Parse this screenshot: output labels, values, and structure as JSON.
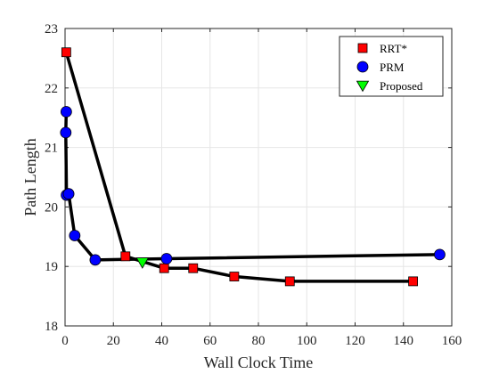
{
  "chart_data": {
    "type": "line",
    "xlabel": "Wall Clock Time",
    "ylabel": "Path Length",
    "xlim": [
      0,
      160
    ],
    "ylim": [
      18,
      23
    ],
    "xticks": [
      0,
      20,
      40,
      60,
      80,
      100,
      120,
      140,
      160
    ],
    "yticks": [
      18,
      19,
      20,
      21,
      22,
      23
    ],
    "xtick_labels": [
      "0",
      "20",
      "40",
      "60",
      "80",
      "100",
      "120",
      "140",
      "160"
    ],
    "ytick_labels": [
      "18",
      "19",
      "20",
      "21",
      "22",
      "23"
    ],
    "grid": true,
    "legend_position": "top-right",
    "series": [
      {
        "name": "RRT*",
        "marker": "square",
        "color": "#ff0000",
        "x": [
          0.5,
          25,
          41,
          53,
          70,
          93,
          144
        ],
        "y": [
          22.6,
          19.17,
          18.97,
          18.97,
          18.83,
          18.75,
          18.75
        ]
      },
      {
        "name": "PRM",
        "marker": "circle",
        "color": "#0000ff",
        "x": [
          0.5,
          0.3,
          0.6,
          1.5,
          4,
          12.5,
          42,
          155
        ],
        "y": [
          21.6,
          21.25,
          20.2,
          20.22,
          19.52,
          19.11,
          19.13,
          19.2
        ]
      },
      {
        "name": "Proposed",
        "marker": "triangle-down",
        "color": "#00ff00",
        "x": [
          32
        ],
        "y": [
          19.07
        ]
      }
    ]
  }
}
